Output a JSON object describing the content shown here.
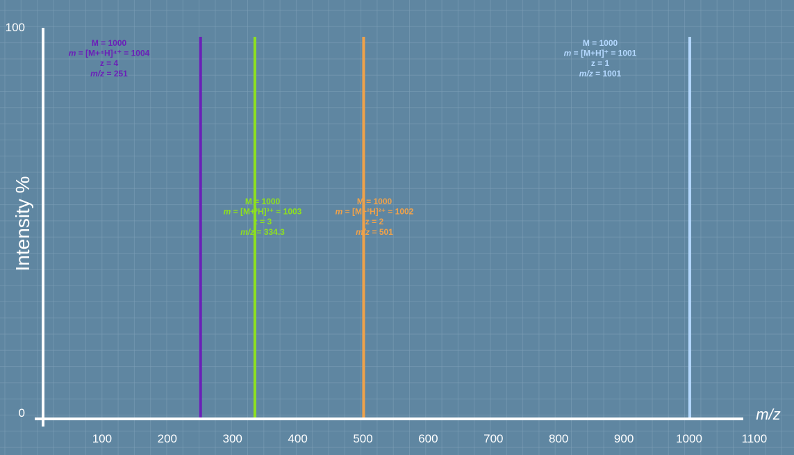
{
  "chart_data": {
    "type": "bar",
    "xlabel": "m/z",
    "ylabel": "Intensity %",
    "xlim": [
      65,
      1140
    ],
    "ylim": [
      0,
      100
    ],
    "x_ticks": [
      100,
      200,
      300,
      400,
      500,
      600,
      700,
      800,
      900,
      1000,
      1100
    ],
    "y_ticks": [
      0,
      100
    ],
    "grid": true,
    "peaks": [
      {
        "x": 251,
        "y": 100,
        "color": "#6a1fb8",
        "label_lines": [
          {
            "text": "M = 1000"
          },
          {
            "prefix": "m",
            "text": " = [M+⁴H]⁴⁺ = 1004"
          },
          {
            "text": "z = 4"
          },
          {
            "prefix": "m/z",
            "text": " = 251"
          }
        ]
      },
      {
        "x": 334.3,
        "y": 100,
        "color": "#8ee01f",
        "label_lines": [
          {
            "text": "M = 1000"
          },
          {
            "prefix": "m",
            "text": " = [M+³H]³⁺ = 1003"
          },
          {
            "text": "z = 3"
          },
          {
            "prefix": "m/z",
            "text": " = 334.3"
          }
        ]
      },
      {
        "x": 501,
        "y": 100,
        "color": "#f0a24a",
        "label_lines": [
          {
            "text": "M = 1000"
          },
          {
            "prefix": "m",
            "text": " = [M+²H]²⁺ = 1002"
          },
          {
            "text": "z = 2"
          },
          {
            "prefix": "m/z",
            "text": " = 501"
          }
        ]
      },
      {
        "x": 1001,
        "y": 100,
        "color": "#b4d8ff",
        "label_lines": [
          {
            "text": "M = 1000"
          },
          {
            "prefix": "m",
            "text": " = [M+H]⁺ = 1001"
          },
          {
            "text": "z = 1"
          },
          {
            "prefix": "m/z",
            "text": " = 1001"
          }
        ]
      }
    ]
  },
  "colors": {
    "background": "#5f86a1",
    "grid": "#7fa0b7",
    "axis": "#ffffff"
  }
}
